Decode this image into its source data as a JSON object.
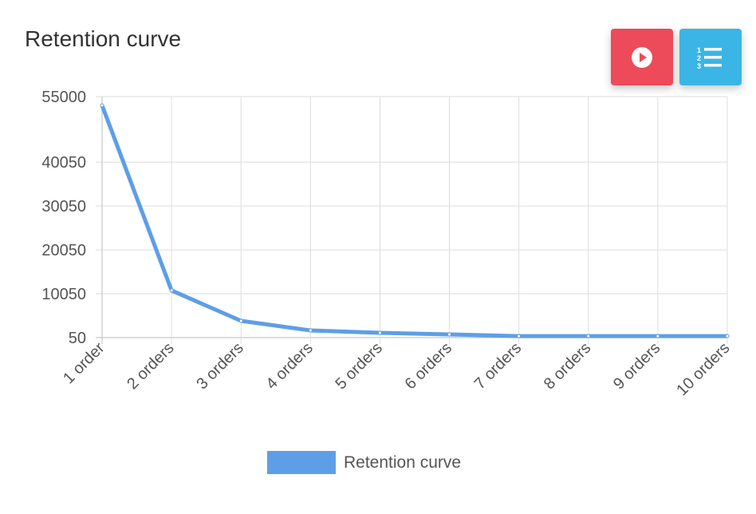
{
  "header": {
    "title": "Retention curve"
  },
  "buttons": {
    "play": "play-icon",
    "list": "numbered-list-icon"
  },
  "colors": {
    "line": "#5e9ee6",
    "play_button": "#ed4a5a",
    "list_button": "#3bb5e5",
    "grid": "#dddddd"
  },
  "chart_data": {
    "type": "line",
    "title": "",
    "xlabel": "",
    "ylabel": "",
    "categories": [
      "1 order",
      "2 orders",
      "3 orders",
      "4 orders",
      "5 orders",
      "6 orders",
      "7 orders",
      "8 orders",
      "9 orders",
      "10 orders"
    ],
    "series": [
      {
        "name": "Retention curve",
        "values": [
          53000,
          10800,
          3870,
          1690,
          1140,
          780,
          400,
          400,
          400,
          400
        ]
      }
    ],
    "ylim": [
      50,
      55000
    ],
    "yticks": [
      50,
      10050,
      20050,
      30050,
      40050,
      55000
    ],
    "grid": true,
    "legend": "bottom"
  }
}
